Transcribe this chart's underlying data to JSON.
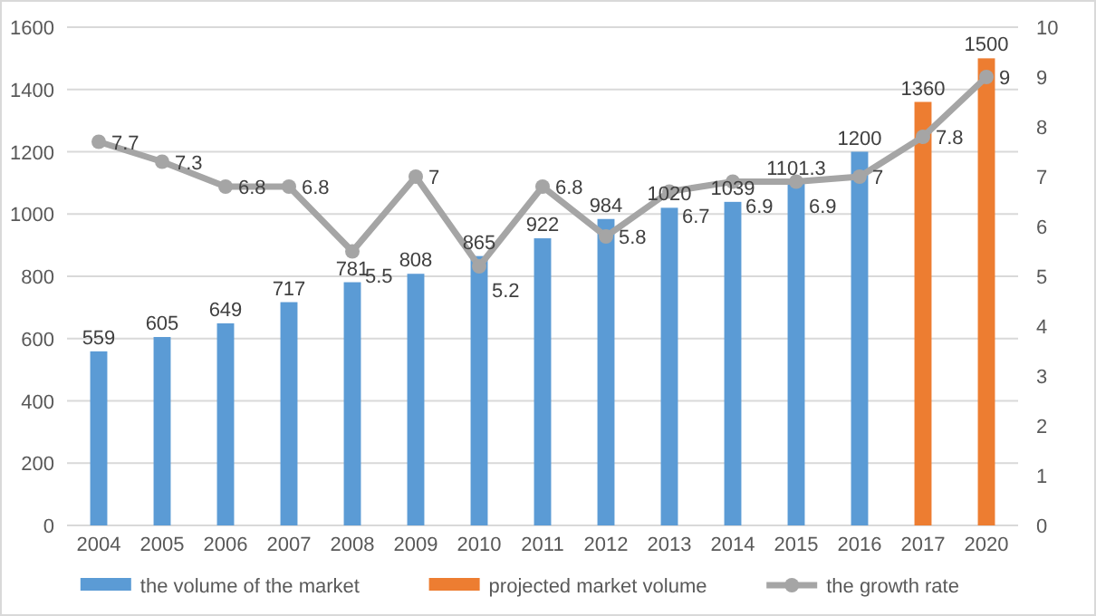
{
  "chart_data": {
    "type": "bar",
    "categories": [
      "2004",
      "2005",
      "2006",
      "2007",
      "2008",
      "2009",
      "2010",
      "2011",
      "2012",
      "2013",
      "2014",
      "2015",
      "2016",
      "2017",
      "2020"
    ],
    "series": [
      {
        "name": "the volume of the market",
        "color": "#5b9bd5",
        "values": [
          559,
          605,
          649,
          717,
          781,
          808,
          865,
          922,
          984,
          1020,
          1039,
          1101.3,
          1200,
          null,
          null
        ]
      },
      {
        "name": "projected market volume",
        "color": "#ed7d31",
        "values": [
          null,
          null,
          null,
          null,
          null,
          null,
          null,
          null,
          null,
          null,
          null,
          null,
          null,
          1360,
          1500
        ]
      },
      {
        "name": "the growth rate",
        "type": "line",
        "axis": "y2",
        "color": "#a5a5a5",
        "values": [
          7.7,
          7.3,
          6.8,
          6.8,
          5.5,
          7,
          5.2,
          6.8,
          5.8,
          6.7,
          6.9,
          6.9,
          7,
          7.8,
          9
        ]
      }
    ],
    "ylim": [
      0,
      1600
    ],
    "yticks": [
      0,
      200,
      400,
      600,
      800,
      1000,
      1200,
      1400,
      1600
    ],
    "y2lim": [
      0,
      10
    ],
    "y2ticks": [
      0,
      1,
      2,
      3,
      4,
      5,
      6,
      7,
      8,
      9,
      10
    ],
    "grid": "y",
    "legend": "bottom",
    "marker": "circle",
    "line_style": "solid",
    "data_labels": true
  }
}
